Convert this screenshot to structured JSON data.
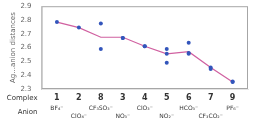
{
  "chart_data": {
    "type": "line",
    "ylabel": "Ag...anion distances",
    "x": [
      1,
      2,
      3,
      4,
      5,
      6,
      7,
      8,
      9
    ],
    "xlim": [
      0.3,
      9.7
    ],
    "xticks": [
      1,
      2,
      3,
      4,
      5,
      6,
      7,
      8,
      9
    ],
    "ylim": [
      2.3,
      2.9
    ],
    "yticks": [
      2.3,
      2.4,
      2.5,
      2.6,
      2.7,
      2.8,
      2.9
    ],
    "grid": false,
    "tick_labels": "y",
    "series": [
      {
        "type": "line",
        "color": "#d060a0",
        "values": [
          2.785,
          2.745,
          2.675,
          2.675,
          2.61,
          2.555,
          2.57,
          2.455,
          2.35
        ]
      },
      {
        "type": "scatter",
        "color": "#3355bb",
        "values": [
          [
            2.785
          ],
          [
            2.745
          ],
          [
            2.775,
            2.59
          ],
          [
            2.67,
            2.67
          ],
          [
            2.61,
            2.61
          ],
          [
            2.59,
            2.555,
            2.49
          ],
          [
            2.635,
            2.56,
            2.555
          ],
          [
            2.455,
            2.445
          ],
          [
            2.355,
            2.35
          ]
        ]
      }
    ],
    "annotations": [
      {
        "text": "Complex",
        "labels": [
          "1",
          "2",
          "8",
          "3",
          "4",
          "5",
          "6",
          "7",
          "9"
        ]
      },
      {
        "text": "Anion",
        "labels": [
          "BF₄⁻",
          "ClO₄⁻",
          "CF₃SO₃⁻",
          "NO₃⁻",
          "ClO₃⁻",
          "NO₂⁻",
          "HCO₃⁻",
          "CF₃CO₂⁻",
          "PF₆⁻"
        ]
      }
    ]
  }
}
